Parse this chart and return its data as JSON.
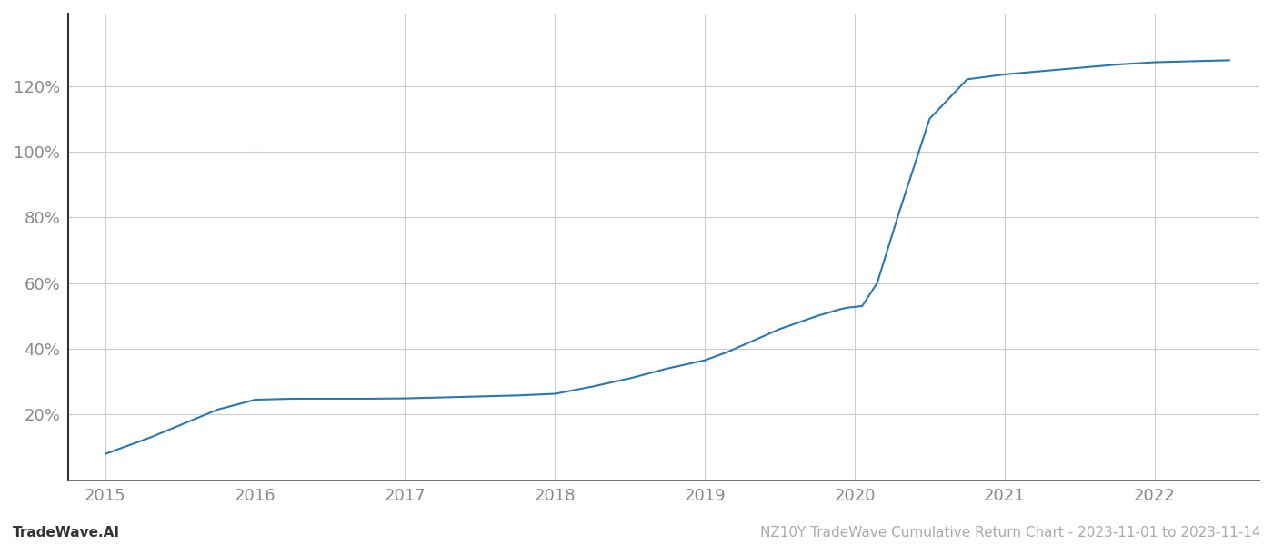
{
  "x_values": [
    2015.0,
    2015.3,
    2015.75,
    2016.0,
    2016.25,
    2016.5,
    2016.75,
    2017.0,
    2017.25,
    2017.5,
    2017.75,
    2018.0,
    2018.25,
    2018.5,
    2018.75,
    2019.0,
    2019.15,
    2019.3,
    2019.5,
    2019.75,
    2019.9,
    2019.95,
    2020.05,
    2020.15,
    2020.3,
    2020.5,
    2020.75,
    2021.0,
    2021.25,
    2021.5,
    2021.75,
    2022.0,
    2022.25,
    2022.5
  ],
  "y_values": [
    0.08,
    0.13,
    0.215,
    0.245,
    0.248,
    0.248,
    0.248,
    0.249,
    0.252,
    0.255,
    0.258,
    0.263,
    0.285,
    0.31,
    0.34,
    0.365,
    0.39,
    0.42,
    0.46,
    0.5,
    0.52,
    0.525,
    0.53,
    0.6,
    0.82,
    1.1,
    1.22,
    1.235,
    1.245,
    1.255,
    1.265,
    1.272,
    1.275,
    1.278
  ],
  "line_color": "#2878b4",
  "line_width": 1.5,
  "background_color": "#ffffff",
  "grid_color": "#cccccc",
  "ytick_labels": [
    "20%",
    "40%",
    "60%",
    "80%",
    "100%",
    "120%"
  ],
  "ytick_values": [
    0.2,
    0.4,
    0.6,
    0.8,
    1.0,
    1.2
  ],
  "xtick_labels": [
    "2015",
    "2016",
    "2017",
    "2018",
    "2019",
    "2020",
    "2021",
    "2022"
  ],
  "xtick_values": [
    2015,
    2016,
    2017,
    2018,
    2019,
    2020,
    2021,
    2022
  ],
  "xlim": [
    2014.75,
    2022.7
  ],
  "ylim": [
    0.0,
    1.42
  ],
  "footer_left": "TradeWave.AI",
  "footer_right": "NZ10Y TradeWave Cumulative Return Chart - 2023-11-01 to 2023-11-14",
  "footer_color": "#aaaaaa",
  "footer_fontsize": 11,
  "tick_color": "#888888",
  "tick_fontsize": 13,
  "spine_color": "#555555",
  "left_spine_color": "#333333"
}
